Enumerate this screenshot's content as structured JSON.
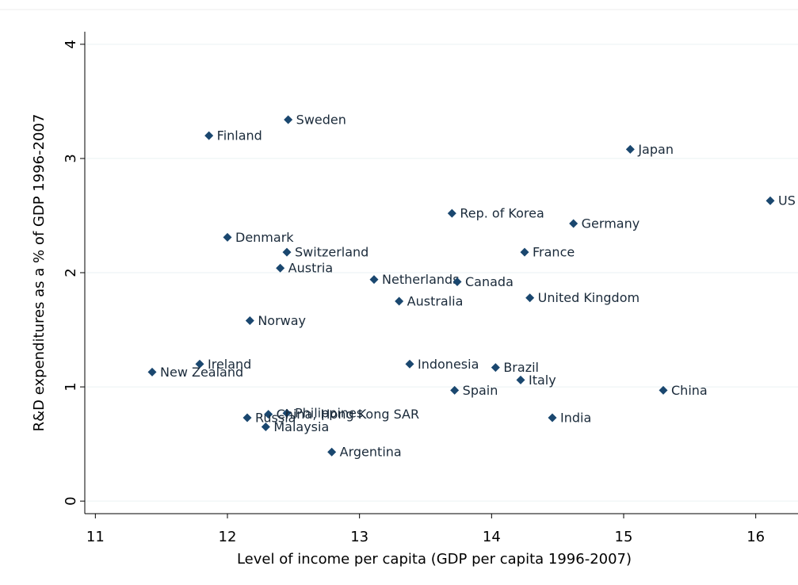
{
  "chart_data": {
    "type": "scatter",
    "x_label": "Level of income per capita (GDP per capita 1996-2007)",
    "y_label": "R&D expenditures as a % of GDP 1996-2007",
    "labels": [
      "Sweden",
      "Finland",
      "Japan",
      "US",
      "Rep. of Korea",
      "Germany",
      "Denmark",
      "Switzerland",
      "France",
      "Austria",
      "Netherlands",
      "Canada",
      "Australia",
      "United Kingdom",
      "Norway",
      "Ireland",
      "New Zealand",
      "Indonesia",
      "Brazil",
      "Italy",
      "Spain",
      "China",
      "India",
      "Philippines",
      "China, Hong Kong SAR",
      "Russia",
      "Malaysia",
      "Argentina"
    ],
    "x": [
      12.46,
      11.86,
      15.05,
      16.11,
      13.7,
      14.62,
      12.0,
      12.45,
      14.25,
      12.4,
      13.11,
      13.74,
      13.3,
      14.29,
      12.17,
      11.79,
      11.43,
      13.38,
      14.03,
      14.22,
      13.72,
      15.3,
      14.46,
      12.45,
      12.31,
      12.15,
      12.29,
      12.79
    ],
    "values": [
      3.34,
      3.2,
      3.08,
      2.63,
      2.52,
      2.43,
      2.31,
      2.18,
      2.18,
      2.04,
      1.94,
      1.92,
      1.75,
      1.78,
      1.58,
      1.2,
      1.13,
      1.2,
      1.17,
      1.06,
      0.97,
      0.97,
      0.73,
      0.77,
      0.76,
      0.73,
      0.65,
      0.43
    ],
    "color": "#1a476f",
    "xlim": [
      10.92,
      16.32
    ],
    "ylim": [
      -0.11,
      4.11
    ],
    "xticks": [
      11,
      12,
      13,
      14,
      15,
      16
    ],
    "yticks": [
      0,
      1,
      2,
      3,
      4
    ],
    "grid": true
  }
}
